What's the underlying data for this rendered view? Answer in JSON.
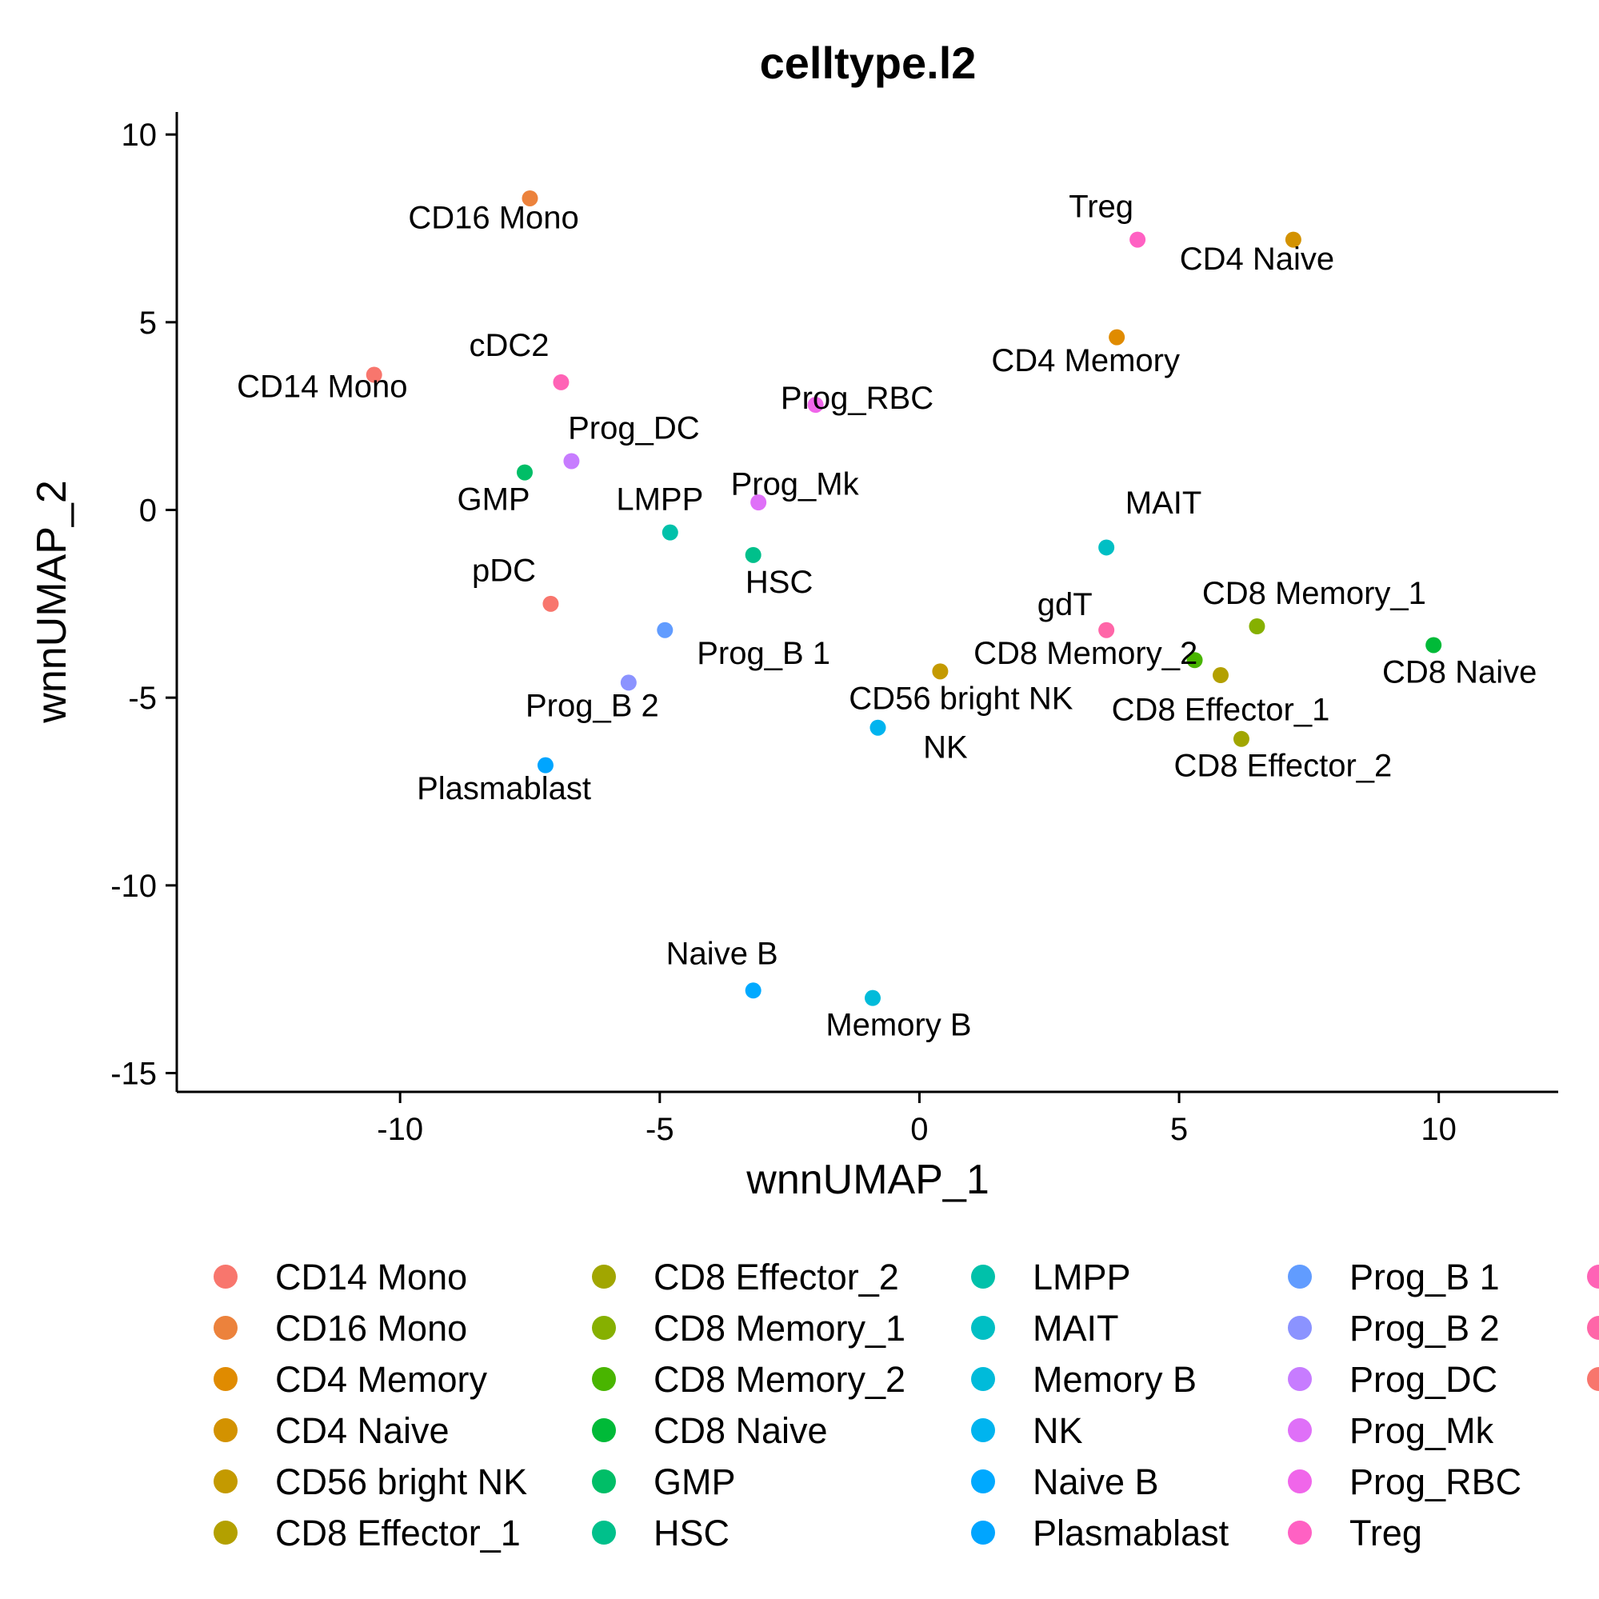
{
  "chart_data": {
    "type": "scatter",
    "title": "celltype.l2",
    "xlabel": "wnnUMAP_1",
    "ylabel": "wnnUMAP_2",
    "xlim": [
      -14.3,
      12.3
    ],
    "ylim": [
      -15.5,
      10.6
    ],
    "xticks": [
      -10,
      -5,
      0,
      5,
      10
    ],
    "yticks": [
      10,
      5,
      0,
      -5,
      -10,
      -15
    ],
    "grid": false,
    "legend_position": "bottom",
    "series": [
      {
        "name": "CD14 Mono",
        "color": "#F8766D",
        "x": -10.5,
        "y": 3.6
      },
      {
        "name": "CD16 Mono",
        "color": "#EC823C",
        "x": -7.5,
        "y": 8.3
      },
      {
        "name": "CD4 Memory",
        "color": "#E08B00",
        "x": 3.8,
        "y": 4.6
      },
      {
        "name": "CD4 Naive",
        "color": "#D39200",
        "x": 7.2,
        "y": 7.2
      },
      {
        "name": "CD56 bright NK",
        "color": "#C49A00",
        "x": 0.4,
        "y": -4.3
      },
      {
        "name": "CD8 Effector_1",
        "color": "#B3A000",
        "x": 5.8,
        "y": -4.4
      },
      {
        "name": "CD8 Effector_2",
        "color": "#A1A600",
        "x": 6.2,
        "y": -6.1
      },
      {
        "name": "CD8 Memory_1",
        "color": "#86B000",
        "x": 6.5,
        "y": -3.1
      },
      {
        "name": "CD8 Memory_2",
        "color": "#49B500",
        "x": 5.3,
        "y": -4.0
      },
      {
        "name": "CD8 Naive",
        "color": "#00BA38",
        "x": 9.9,
        "y": -3.6
      },
      {
        "name": "GMP",
        "color": "#00BE67",
        "x": -7.6,
        "y": 1.0
      },
      {
        "name": "HSC",
        "color": "#00C08B",
        "x": -3.2,
        "y": -1.2
      },
      {
        "name": "LMPP",
        "color": "#00C1AA",
        "x": -4.8,
        "y": -0.6
      },
      {
        "name": "MAIT",
        "color": "#00BFC4",
        "x": 3.6,
        "y": -1.0
      },
      {
        "name": "Memory B",
        "color": "#00BBDA",
        "x": -0.9,
        "y": -13.0
      },
      {
        "name": "NK",
        "color": "#00B4EF",
        "x": -0.8,
        "y": -5.8
      },
      {
        "name": "Naive B",
        "color": "#00A9FF",
        "x": -3.2,
        "y": -12.8
      },
      {
        "name": "Plasmablast",
        "color": "#00A5FF",
        "x": -7.2,
        "y": -6.8
      },
      {
        "name": "Prog_B 1",
        "color": "#619CFF",
        "x": -4.9,
        "y": -3.2
      },
      {
        "name": "Prog_B 2",
        "color": "#8B93FF",
        "x": -5.6,
        "y": -4.6
      },
      {
        "name": "Prog_DC",
        "color": "#C77CFF",
        "x": -6.7,
        "y": 1.3
      },
      {
        "name": "Prog_Mk",
        "color": "#DF70F8",
        "x": -3.1,
        "y": 0.2
      },
      {
        "name": "Prog_RBC",
        "color": "#F066EA",
        "x": -2.0,
        "y": 2.8
      },
      {
        "name": "Treg",
        "color": "#FF61C3",
        "x": 4.2,
        "y": 7.2
      },
      {
        "name": "cDC2",
        "color": "#FF63B6",
        "x": -6.9,
        "y": 3.4
      },
      {
        "name": "gdT",
        "color": "#FF66A8",
        "x": 3.6,
        "y": -3.2
      },
      {
        "name": "pDC",
        "color": "#F8766D",
        "x": -7.1,
        "y": -2.5
      }
    ],
    "annotations": [
      {
        "text": "CD16 Mono",
        "x": -8.2,
        "y": 7.5
      },
      {
        "text": "CD14 Mono",
        "x": -11.5,
        "y": 3.0
      },
      {
        "text": "cDC2",
        "x": -7.9,
        "y": 4.1
      },
      {
        "text": "Prog_DC",
        "x": -5.5,
        "y": 1.9
      },
      {
        "text": "GMP",
        "x": -8.2,
        "y": 0.0
      },
      {
        "text": "LMPP",
        "x": -5.0,
        "y": 0.0
      },
      {
        "text": "pDC",
        "x": -8.0,
        "y": -1.9
      },
      {
        "text": "HSC",
        "x": -2.7,
        "y": -2.2
      },
      {
        "text": "Prog_Mk",
        "x": -2.4,
        "y": 0.4
      },
      {
        "text": "Prog_RBC",
        "x": -1.2,
        "y": 2.7
      },
      {
        "text": "Prog_B 1",
        "x": -3.0,
        "y": -4.1
      },
      {
        "text": "Prog_B 2",
        "x": -6.3,
        "y": -5.5
      },
      {
        "text": "Plasmablast",
        "x": -8.0,
        "y": -7.7
      },
      {
        "text": "Treg",
        "x": 3.5,
        "y": 7.8
      },
      {
        "text": "CD4 Naive",
        "x": 6.5,
        "y": 6.4
      },
      {
        "text": "CD4 Memory",
        "x": 3.2,
        "y": 3.7
      },
      {
        "text": "MAIT",
        "x": 4.7,
        "y": -0.1
      },
      {
        "text": "gdT",
        "x": 2.8,
        "y": -2.8
      },
      {
        "text": "CD8 Memory_1",
        "x": 7.6,
        "y": -2.5
      },
      {
        "text": "CD8 Memory_2",
        "x": 3.2,
        "y": -4.1
      },
      {
        "text": "CD8 Naive",
        "x": 10.4,
        "y": -4.6
      },
      {
        "text": "CD56 bright NK",
        "x": 0.8,
        "y": -5.3
      },
      {
        "text": "CD8 Effector_1",
        "x": 5.8,
        "y": -5.6
      },
      {
        "text": "CD8 Effector_2",
        "x": 7.0,
        "y": -7.1
      },
      {
        "text": "NK",
        "x": 0.5,
        "y": -6.6
      },
      {
        "text": "Naive B",
        "x": -3.8,
        "y": -12.1
      },
      {
        "text": "Memory B",
        "x": -0.4,
        "y": -14.0
      }
    ]
  }
}
